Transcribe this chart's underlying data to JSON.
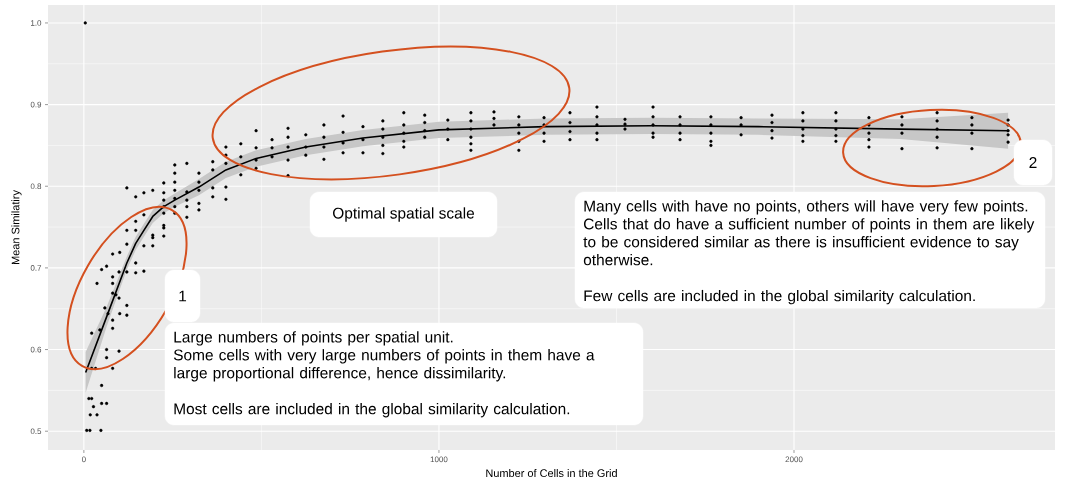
{
  "chart_data": {
    "type": "scatter",
    "xlabel": "Number of Cells in the Grid",
    "ylabel": "Mean Similatiry",
    "xlim": [
      -101,
      2735
    ],
    "ylim": [
      0.477,
      1.022
    ],
    "xticks": [
      0,
      1000,
      2000
    ],
    "yticks": [
      0.5,
      0.6,
      0.7,
      0.8,
      0.9,
      {
        "value": 1,
        "label": "1.0"
      }
    ],
    "grid": true,
    "annotations": [
      "1",
      "2",
      "Optimal spatial scale",
      "Large numbers of points per spatial unit.",
      "Some cells with very large numbers of points in them have a large proportional difference, hence dissimilarity.",
      "Most cells are included in the global similarity calculation.",
      "Many cells with have no points, others will have very few points.",
      "Cells that do have a sufficient number of points in them are likely to be considered similar as there is insufficient evidence to say otherwise.",
      "Few cells are included in the global similarity calculation."
    ],
    "series": [
      {
        "color": "#000000",
        "marker": "circle",
        "x": [
          4,
          8,
          17,
          48,
          14,
          22,
          18,
          27,
          37,
          50,
          64,
          50,
          33,
          22,
          64,
          64,
          99,
          81,
          22,
          45,
          81,
          59,
          68,
          81,
          101,
          121,
          121,
          81,
          90,
          99,
          37,
          81,
          81,
          99,
          50,
          64,
          121,
          146,
          146,
          169,
          81,
          101,
          121,
          121,
          146,
          146,
          169,
          169,
          194,
          194,
          194,
          225,
          225,
          225,
          121,
          146,
          169,
          194,
          225,
          225,
          225,
          225,
          225,
          256,
          256,
          256,
          256,
          256,
          256,
          256,
          290,
          290,
          290,
          290,
          290,
          324,
          324,
          324,
          324,
          324,
          363,
          363,
          363,
          363,
          400,
          400,
          400,
          400,
          400,
          442,
          442,
          442,
          485,
          485,
          485,
          485,
          530,
          530,
          530,
          575,
          575,
          575,
          575,
          575,
          625,
          625,
          625,
          676,
          676,
          676,
          676,
          730,
          730,
          730,
          730,
          786,
          786,
          786,
          842,
          842,
          842,
          842,
          842,
          901,
          901,
          901,
          901,
          901,
          960,
          960,
          960,
          960,
          1025,
          1025,
          1025,
          1090,
          1090,
          1090,
          1090,
          1090,
          1090,
          1155,
          1155,
          1155,
          1225,
          1225,
          1225,
          1225,
          1225,
          1296,
          1296,
          1296,
          1296,
          1369,
          1369,
          1369,
          1369,
          1445,
          1445,
          1445,
          1445,
          1445,
          1524,
          1524,
          1524,
          1603,
          1603,
          1603,
          1603,
          1603,
          1679,
          1679,
          1679,
          1679,
          1766,
          1766,
          1766,
          1766,
          1766,
          1851,
          1851,
          1851,
          1938,
          1938,
          1938,
          1938,
          2025,
          2025,
          2025,
          2025,
          2025,
          2118,
          2118,
          2118,
          2118,
          2118,
          2211,
          2211,
          2211,
          2211,
          2211,
          2304,
          2304,
          2304,
          2304,
          2403,
          2403,
          2403,
          2403,
          2403,
          2501,
          2501,
          2501,
          2501,
          2603,
          2603,
          2603,
          2603,
          2603
        ],
        "values": [
          1.0,
          0.501,
          0.501,
          0.501,
          0.54,
          0.54,
          0.52,
          0.53,
          0.52,
          0.534,
          0.534,
          0.556,
          0.577,
          0.577,
          0.59,
          0.6,
          0.598,
          0.577,
          0.62,
          0.624,
          0.626,
          0.651,
          0.644,
          0.636,
          0.644,
          0.642,
          0.654,
          0.669,
          0.667,
          0.663,
          0.681,
          0.689,
          0.681,
          0.695,
          0.698,
          0.702,
          0.695,
          0.706,
          0.694,
          0.696,
          0.717,
          0.719,
          0.729,
          0.746,
          0.746,
          0.757,
          0.727,
          0.765,
          0.727,
          0.737,
          0.74,
          0.739,
          0.749,
          0.752,
          0.798,
          0.787,
          0.792,
          0.795,
          0.804,
          0.792,
          0.783,
          0.775,
          0.767,
          0.826,
          0.816,
          0.805,
          0.795,
          0.785,
          0.775,
          0.767,
          0.828,
          0.793,
          0.783,
          0.775,
          0.762,
          0.816,
          0.805,
          0.795,
          0.779,
          0.771,
          0.83,
          0.82,
          0.798,
          0.787,
          0.848,
          0.838,
          0.828,
          0.799,
          0.784,
          0.852,
          0.836,
          0.814,
          0.868,
          0.847,
          0.832,
          0.822,
          0.857,
          0.847,
          0.836,
          0.871,
          0.86,
          0.848,
          0.832,
          0.813,
          0.863,
          0.848,
          0.838,
          0.875,
          0.86,
          0.848,
          0.833,
          0.886,
          0.866,
          0.853,
          0.841,
          0.873,
          0.857,
          0.841,
          0.88,
          0.87,
          0.86,
          0.85,
          0.84,
          0.89,
          0.875,
          0.865,
          0.855,
          0.848,
          0.887,
          0.878,
          0.868,
          0.86,
          0.881,
          0.87,
          0.857,
          0.89,
          0.88,
          0.87,
          0.86,
          0.852,
          0.844,
          0.891,
          0.883,
          0.875,
          0.885,
          0.875,
          0.865,
          0.855,
          0.844,
          0.884,
          0.875,
          0.865,
          0.855,
          0.89,
          0.878,
          0.867,
          0.857,
          0.897,
          0.885,
          0.875,
          0.865,
          0.857,
          0.882,
          0.876,
          0.87,
          0.897,
          0.885,
          0.875,
          0.865,
          0.86,
          0.885,
          0.875,
          0.865,
          0.857,
          0.885,
          0.875,
          0.865,
          0.855,
          0.85,
          0.884,
          0.875,
          0.863,
          0.887,
          0.878,
          0.868,
          0.859,
          0.89,
          0.88,
          0.87,
          0.862,
          0.855,
          0.89,
          0.88,
          0.87,
          0.862,
          0.855,
          0.884,
          0.875,
          0.865,
          0.857,
          0.848,
          0.885,
          0.875,
          0.865,
          0.846,
          0.89,
          0.88,
          0.87,
          0.86,
          0.847,
          0.884,
          0.875,
          0.865,
          0.846,
          0.881,
          0.875,
          0.868,
          0.863,
          0.854
        ]
      },
      {
        "type": "line",
        "color": "#000000",
        "marker": "none",
        "x": [
          5,
          64,
          121,
          146,
          169,
          194,
          225,
          256,
          324,
          400,
          485,
          625,
          786,
          1000,
          1300,
          1600,
          1900,
          2300,
          2603
        ],
        "values": [
          0.572,
          0.64,
          0.706,
          0.73,
          0.746,
          0.763,
          0.775,
          0.783,
          0.799,
          0.82,
          0.834,
          0.848,
          0.859,
          0.869,
          0.873,
          0.874,
          0.873,
          0.87,
          0.868
        ],
        "lower": [
          0.547,
          0.628,
          0.698,
          0.722,
          0.738,
          0.755,
          0.767,
          0.775,
          0.789,
          0.81,
          0.824,
          0.838,
          0.849,
          0.859,
          0.863,
          0.864,
          0.863,
          0.858,
          0.846
        ],
        "upper": [
          0.597,
          0.652,
          0.714,
          0.738,
          0.754,
          0.771,
          0.783,
          0.791,
          0.809,
          0.83,
          0.844,
          0.858,
          0.869,
          0.879,
          0.883,
          0.884,
          0.883,
          0.882,
          0.89
        ]
      }
    ]
  }
}
